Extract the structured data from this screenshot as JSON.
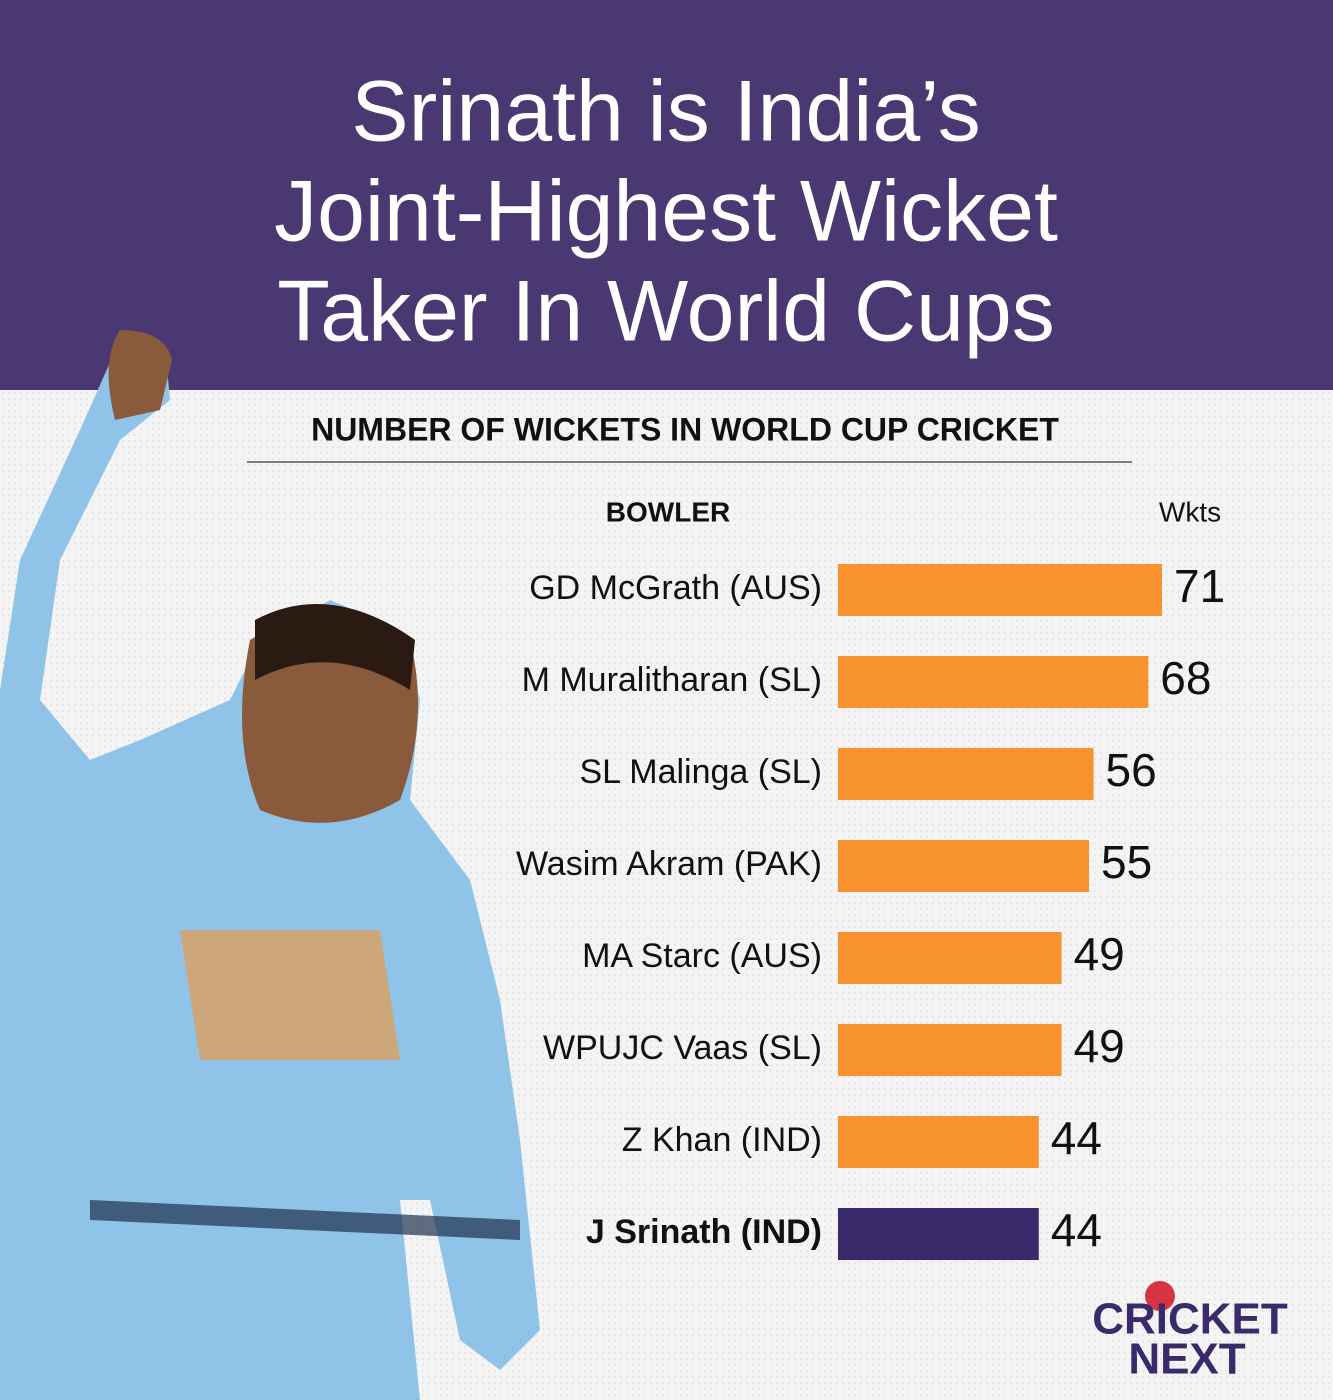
{
  "chart_data": {
    "type": "hbar",
    "title": [
      "Srinath is India’s",
      "Joint-Highest Wicket",
      "Taker In World Cups"
    ],
    "subtitle": "NUMBER OF WICKETS IN WORLD CUP CRICKET",
    "category_header": "BOWLER",
    "value_header": "Wkts",
    "categories": [
      "GD McGrath (AUS)",
      "M Muralitharan (SL)",
      "SL Malinga (SL)",
      "Wasim Akram (PAK)",
      "MA Starc (AUS)",
      "WPUJC Vaas (SL)",
      "Z Khan (IND)",
      "J Srinath (IND)"
    ],
    "values": [
      71,
      68,
      56,
      55,
      49,
      49,
      44,
      44
    ],
    "colors": [
      "#f7922e",
      "#f7922e",
      "#f7922e",
      "#f7922e",
      "#f7922e",
      "#f7922e",
      "#f7922e",
      "#3a2a6b"
    ],
    "logo": [
      "CRICKET",
      "NEXT"
    ]
  }
}
